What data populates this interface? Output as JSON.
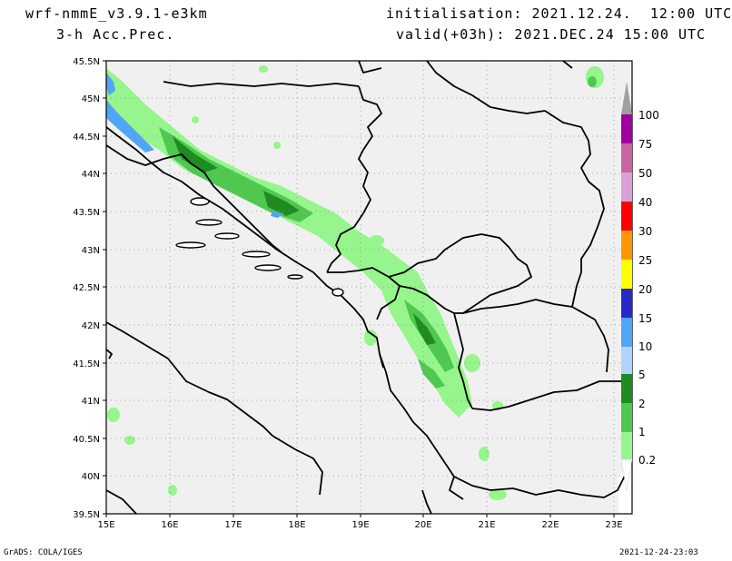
{
  "header": {
    "model": "wrf-nmmE_v3.9.1-e3km",
    "field": "3-h Acc.Prec.",
    "init": "initialisation: 2021.12.24.  12:00 UTC",
    "valid": "valid(+03h): 2021.DEC.24 15:00 UTC"
  },
  "map": {
    "lon_range": [
      15,
      23.3
    ],
    "lat_range": [
      39.5,
      45.5
    ],
    "lon_ticks": [
      "15E",
      "16E",
      "17E",
      "18E",
      "19E",
      "20E",
      "21E",
      "22E",
      "23E"
    ],
    "lat_ticks": [
      "45.5N",
      "45N",
      "44.5N",
      "44N",
      "43.5N",
      "43N",
      "42.5N",
      "42N",
      "41.5N",
      "41N",
      "40.5N",
      "40N",
      "39.5N"
    ],
    "background_color": "#f0f0f0",
    "gridlines": "dotted"
  },
  "colorbar": {
    "levels": [
      "0.2",
      "1",
      "2",
      "5",
      "10",
      "15",
      "20",
      "25",
      "30",
      "40",
      "50",
      "75",
      "100"
    ],
    "colors": [
      "#96f58c",
      "#50c850",
      "#1e8c1e",
      "#afd2ff",
      "#50a5f5",
      "#2828c8",
      "#ffff00",
      "#ff9600",
      "#ff0000",
      "#d7a0d7",
      "#c864a0",
      "#a000a0",
      "#a0a0a0"
    ]
  },
  "footer": {
    "left": "GrADS: COLA/IGES",
    "right": "2021-12-24-23:03"
  }
}
